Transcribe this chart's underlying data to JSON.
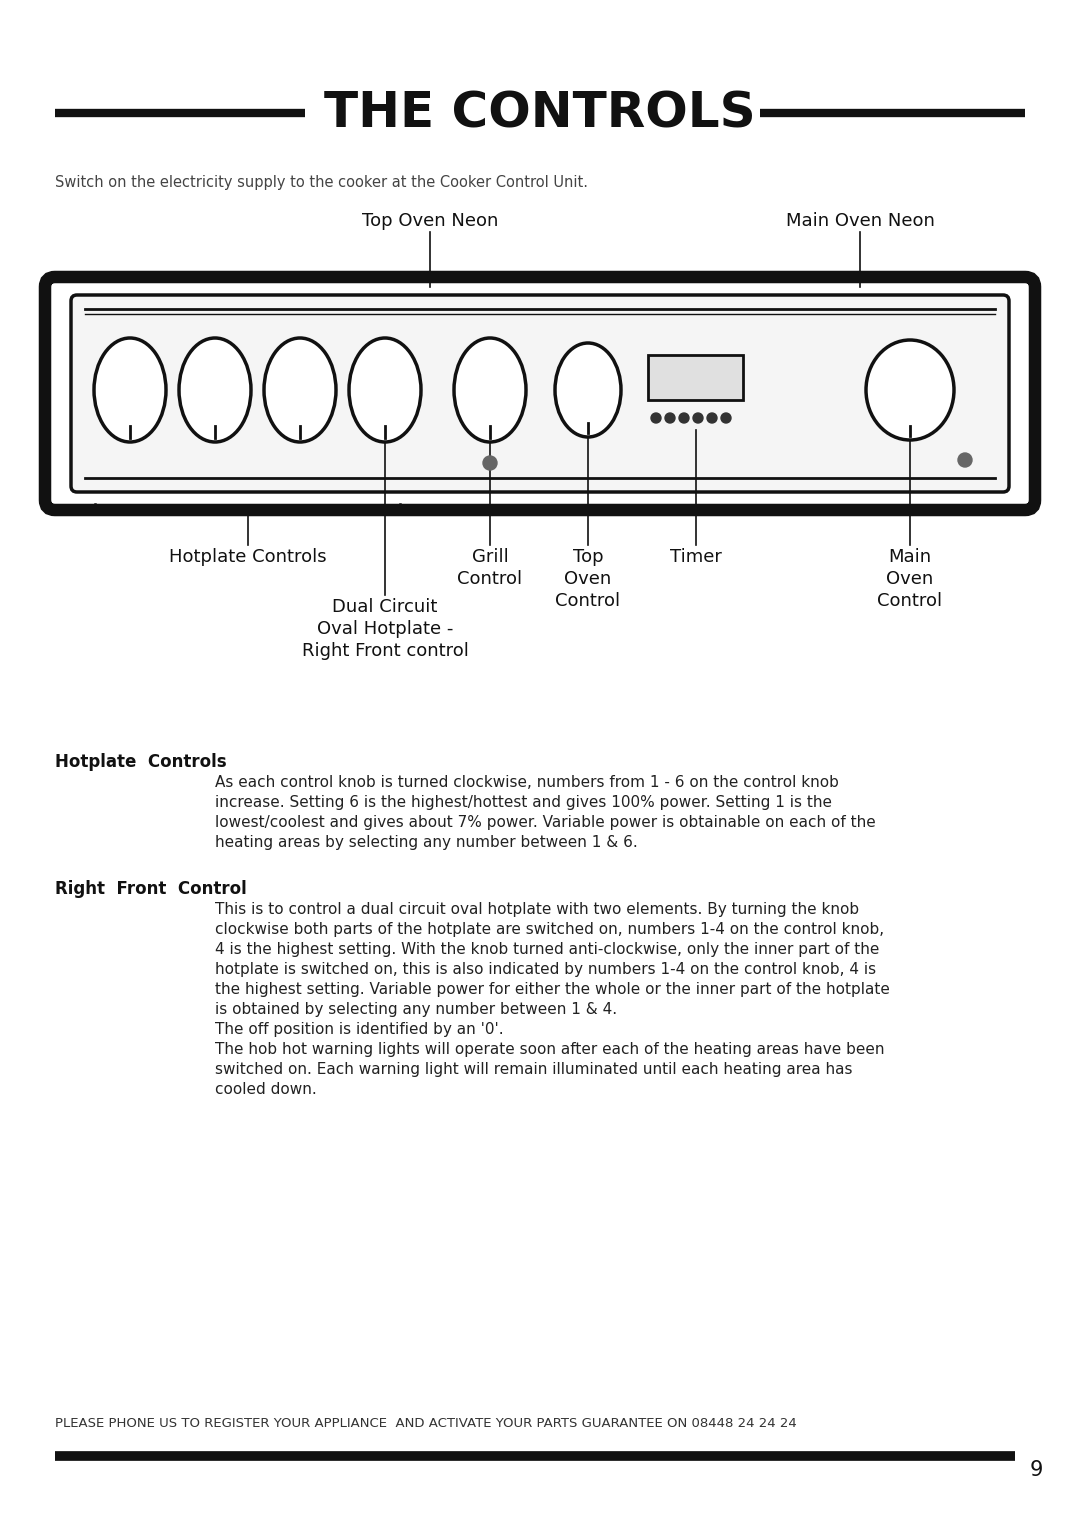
{
  "title": "THE CONTROLS",
  "bg_color": "#ffffff",
  "intro_text": "Switch on the electricity supply to the cooker at the Cooker Control Unit.",
  "hotplate_controls_label": "Hotplate  Controls",
  "hotplate_controls_lines": [
    "As each control knob is turned clockwise, numbers from 1 - 6 on the control knob",
    "increase. Setting 6 is the highest/hottest and gives 100% power. Setting 1 is the",
    "lowest/coolest and gives about 7% power. Variable power is obtainable on each of the",
    "heating areas by selecting any number between 1 & 6."
  ],
  "right_front_label": "Right  Front  Control",
  "right_front_lines": [
    "This is to control a dual circuit oval hotplate with two elements. By turning the knob",
    "clockwise both parts of the hotplate are switched on, numbers 1-4 on the control knob,",
    "4 is the highest setting. With the knob turned anti-clockwise, only the inner part of the",
    "hotplate is switched on, this is also indicated by numbers 1-4 on the control knob, 4 is",
    "the highest setting. Variable power for either the whole or the inner part of the hotplate",
    "is obtained by selecting any number between 1 & 4.",
    "The off position is identified by an '0'.",
    "The hob hot warning lights will operate soon after each of the heating areas have been",
    "switched on. Each warning light will remain illuminated until each heating area has",
    "cooled down."
  ],
  "footer_text": "PLEASE PHONE US TO REGISTER YOUR APPLIANCE  AND ACTIVATE YOUR PARTS GUARANTEE ON 08448 24 24 24",
  "page_number": "9",
  "top_oven_neon": "Top Oven Neon",
  "main_oven_neon": "Main Oven Neon",
  "grill_control": "Grill\nControl",
  "top_oven_control": "Top\nOven\nControl",
  "timer_label": "Timer",
  "main_oven_control": "Main\nOven\nControl",
  "hotplate_controls_diag": "Hotplate Controls",
  "dual_circuit": "Dual Circuit\nOval Hotplate -\nRight Front control"
}
